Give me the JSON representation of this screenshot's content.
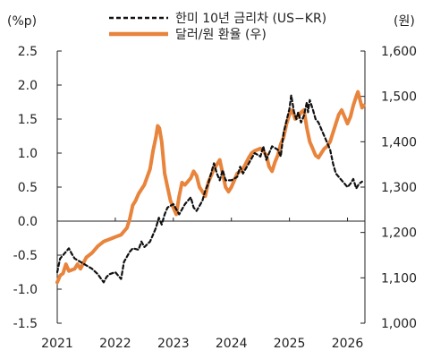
{
  "chart_data": {
    "type": "line",
    "title": "",
    "y_left_unit": "(%p)",
    "y_right_unit": "(원)",
    "x_ticks": [
      "2021",
      "2022",
      "2023",
      "2024",
      "2025",
      "2026"
    ],
    "y_left_ticks": [
      "2.5",
      "2.0",
      "1.5",
      "1.0",
      "0.5",
      "0.0",
      "-0.5",
      "-1.0",
      "-1.5"
    ],
    "y_right_ticks": [
      "1,600",
      "1,500",
      "1,400",
      "1,300",
      "1,200",
      "1,100",
      "1,000"
    ],
    "ylim_left": [
      -1.5,
      2.5
    ],
    "ylim_right": [
      1000,
      1600
    ],
    "xlim": [
      2021.0,
      2026.3
    ],
    "legend_placement": "top-center",
    "series": [
      {
        "name": "한미 10년 금리차 (US−KR)",
        "axis": "left",
        "style": "dashed",
        "color": "#111111",
        "points": [
          [
            2021.0,
            -0.75
          ],
          [
            2021.05,
            -0.55
          ],
          [
            2021.1,
            -0.5
          ],
          [
            2021.2,
            -0.4
          ],
          [
            2021.25,
            -0.48
          ],
          [
            2021.3,
            -0.55
          ],
          [
            2021.4,
            -0.6
          ],
          [
            2021.5,
            -0.65
          ],
          [
            2021.6,
            -0.7
          ],
          [
            2021.7,
            -0.78
          ],
          [
            2021.8,
            -0.9
          ],
          [
            2021.85,
            -0.82
          ],
          [
            2021.9,
            -0.78
          ],
          [
            2022.0,
            -0.75
          ],
          [
            2022.1,
            -0.85
          ],
          [
            2022.15,
            -0.6
          ],
          [
            2022.25,
            -0.45
          ],
          [
            2022.3,
            -0.4
          ],
          [
            2022.4,
            -0.42
          ],
          [
            2022.45,
            -0.3
          ],
          [
            2022.5,
            -0.38
          ],
          [
            2022.6,
            -0.3
          ],
          [
            2022.65,
            -0.2
          ],
          [
            2022.7,
            -0.1
          ],
          [
            2022.75,
            0.05
          ],
          [
            2022.8,
            -0.05
          ],
          [
            2022.85,
            0.1
          ],
          [
            2022.9,
            0.2
          ],
          [
            2023.0,
            0.25
          ],
          [
            2023.1,
            0.1
          ],
          [
            2023.2,
            0.25
          ],
          [
            2023.3,
            0.35
          ],
          [
            2023.35,
            0.2
          ],
          [
            2023.4,
            0.15
          ],
          [
            2023.5,
            0.3
          ],
          [
            2023.55,
            0.45
          ],
          [
            2023.6,
            0.55
          ],
          [
            2023.7,
            0.85
          ],
          [
            2023.75,
            0.7
          ],
          [
            2023.8,
            0.6
          ],
          [
            2023.85,
            0.75
          ],
          [
            2023.9,
            0.6
          ],
          [
            2024.0,
            0.6
          ],
          [
            2024.1,
            0.65
          ],
          [
            2024.15,
            0.8
          ],
          [
            2024.2,
            0.7
          ],
          [
            2024.3,
            0.85
          ],
          [
            2024.4,
            1.0
          ],
          [
            2024.5,
            0.95
          ],
          [
            2024.55,
            1.1
          ],
          [
            2024.6,
            0.9
          ],
          [
            2024.65,
            1.0
          ],
          [
            2024.7,
            1.1
          ],
          [
            2024.8,
            1.05
          ],
          [
            2024.85,
            0.95
          ],
          [
            2024.9,
            1.3
          ],
          [
            2025.0,
            1.65
          ],
          [
            2025.03,
            1.85
          ],
          [
            2025.08,
            1.6
          ],
          [
            2025.12,
            1.5
          ],
          [
            2025.15,
            1.6
          ],
          [
            2025.2,
            1.45
          ],
          [
            2025.25,
            1.55
          ],
          [
            2025.3,
            1.75
          ],
          [
            2025.32,
            1.6
          ],
          [
            2025.35,
            1.78
          ],
          [
            2025.4,
            1.65
          ],
          [
            2025.45,
            1.5
          ],
          [
            2025.5,
            1.45
          ],
          [
            2025.55,
            1.35
          ],
          [
            2025.6,
            1.25
          ],
          [
            2025.7,
            1.05
          ],
          [
            2025.75,
            0.85
          ],
          [
            2025.8,
            0.7
          ],
          [
            2025.85,
            0.65
          ],
          [
            2025.9,
            0.6
          ],
          [
            2025.95,
            0.55
          ],
          [
            2026.0,
            0.5
          ],
          [
            2026.05,
            0.55
          ],
          [
            2026.1,
            0.62
          ],
          [
            2026.15,
            0.48
          ],
          [
            2026.2,
            0.55
          ],
          [
            2026.25,
            0.58
          ]
        ]
      },
      {
        "name": "달러/원 환율 (우)",
        "axis": "right",
        "style": "solid",
        "color": "#E8843C",
        "points": [
          [
            2021.0,
            1090
          ],
          [
            2021.05,
            1105
          ],
          [
            2021.1,
            1110
          ],
          [
            2021.15,
            1130
          ],
          [
            2021.2,
            1115
          ],
          [
            2021.3,
            1120
          ],
          [
            2021.35,
            1130
          ],
          [
            2021.4,
            1120
          ],
          [
            2021.5,
            1145
          ],
          [
            2021.6,
            1155
          ],
          [
            2021.7,
            1170
          ],
          [
            2021.8,
            1180
          ],
          [
            2021.9,
            1185
          ],
          [
            2022.0,
            1190
          ],
          [
            2022.1,
            1195
          ],
          [
            2022.2,
            1210
          ],
          [
            2022.25,
            1230
          ],
          [
            2022.3,
            1260
          ],
          [
            2022.35,
            1270
          ],
          [
            2022.4,
            1285
          ],
          [
            2022.45,
            1295
          ],
          [
            2022.5,
            1305
          ],
          [
            2022.6,
            1340
          ],
          [
            2022.65,
            1380
          ],
          [
            2022.7,
            1410
          ],
          [
            2022.73,
            1435
          ],
          [
            2022.76,
            1430
          ],
          [
            2022.8,
            1400
          ],
          [
            2022.85,
            1330
          ],
          [
            2022.9,
            1300
          ],
          [
            2022.95,
            1270
          ],
          [
            2023.0,
            1255
          ],
          [
            2023.05,
            1240
          ],
          [
            2023.1,
            1280
          ],
          [
            2023.15,
            1310
          ],
          [
            2023.2,
            1305
          ],
          [
            2023.3,
            1320
          ],
          [
            2023.35,
            1335
          ],
          [
            2023.4,
            1325
          ],
          [
            2023.45,
            1300
          ],
          [
            2023.5,
            1290
          ],
          [
            2023.55,
            1280
          ],
          [
            2023.6,
            1310
          ],
          [
            2023.65,
            1325
          ],
          [
            2023.7,
            1340
          ],
          [
            2023.75,
            1350
          ],
          [
            2023.8,
            1360
          ],
          [
            2023.85,
            1330
          ],
          [
            2023.9,
            1300
          ],
          [
            2023.95,
            1290
          ],
          [
            2024.0,
            1300
          ],
          [
            2024.05,
            1315
          ],
          [
            2024.1,
            1330
          ],
          [
            2024.2,
            1340
          ],
          [
            2024.3,
            1365
          ],
          [
            2024.35,
            1375
          ],
          [
            2024.4,
            1380
          ],
          [
            2024.5,
            1385
          ],
          [
            2024.55,
            1380
          ],
          [
            2024.6,
            1370
          ],
          [
            2024.65,
            1345
          ],
          [
            2024.7,
            1335
          ],
          [
            2024.75,
            1355
          ],
          [
            2024.8,
            1370
          ],
          [
            2024.85,
            1395
          ],
          [
            2024.9,
            1410
          ],
          [
            2024.95,
            1440
          ],
          [
            2025.0,
            1460
          ],
          [
            2025.05,
            1470
          ],
          [
            2025.1,
            1450
          ],
          [
            2025.15,
            1455
          ],
          [
            2025.2,
            1465
          ],
          [
            2025.25,
            1470
          ],
          [
            2025.3,
            1430
          ],
          [
            2025.35,
            1400
          ],
          [
            2025.4,
            1385
          ],
          [
            2025.45,
            1370
          ],
          [
            2025.5,
            1365
          ],
          [
            2025.55,
            1375
          ],
          [
            2025.6,
            1385
          ],
          [
            2025.65,
            1390
          ],
          [
            2025.7,
            1400
          ],
          [
            2025.75,
            1420
          ],
          [
            2025.8,
            1440
          ],
          [
            2025.85,
            1460
          ],
          [
            2025.9,
            1470
          ],
          [
            2025.95,
            1455
          ],
          [
            2026.0,
            1440
          ],
          [
            2026.05,
            1455
          ],
          [
            2026.1,
            1480
          ],
          [
            2026.15,
            1500
          ],
          [
            2026.18,
            1510
          ],
          [
            2026.22,
            1490
          ],
          [
            2026.25,
            1475
          ],
          [
            2026.28,
            1480
          ]
        ]
      }
    ]
  }
}
